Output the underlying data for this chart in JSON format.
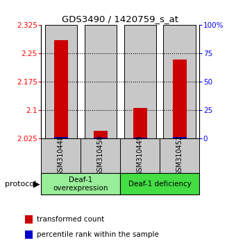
{
  "title": "GDS3490 / 1420759_s_at",
  "samples": [
    "GSM310448",
    "GSM310450",
    "GSM310449",
    "GSM310452"
  ],
  "red_values": [
    2.285,
    2.045,
    2.105,
    2.235
  ],
  "blue_values": [
    2.0285,
    2.0275,
    2.0275,
    2.029
  ],
  "ymin": 2.025,
  "ymax": 2.325,
  "yticks_left": [
    2.025,
    2.1,
    2.175,
    2.25,
    2.325
  ],
  "yticks_right": [
    0,
    25,
    50,
    75,
    100
  ],
  "red_bar_width": 0.35,
  "blue_bar_width": 0.35,
  "gray_bar_width": 0.82,
  "red_color": "#cc0000",
  "blue_color": "#0000cc",
  "bar_bg_color": "#c8c8c8",
  "group1_color": "#99ee99",
  "group2_color": "#44dd44",
  "group1_label": "Deaf-1\noverexpression",
  "group2_label": "Deaf-1 deficiency",
  "protocol_label": "protocol",
  "legend_red": "transformed count",
  "legend_blue": "percentile rank within the sample",
  "title_fontsize": 9.5,
  "tick_fontsize": 7.5,
  "label_fontsize": 7.5
}
